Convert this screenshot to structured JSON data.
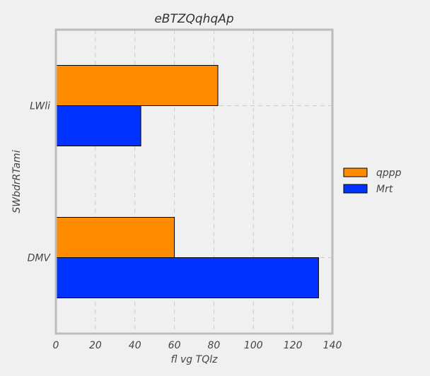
{
  "chart_data": {
    "type": "bar",
    "orientation": "horizontal",
    "title": "eBTZQqhqAp",
    "xlabel": "fl  vg TQlz",
    "ylabel": "SWbdrRTami",
    "categories": [
      "LWli",
      "DMV"
    ],
    "series": [
      {
        "name": "qppp",
        "values": [
          82,
          60
        ],
        "color": "#ff8c00"
      },
      {
        "name": "Mrt",
        "values": [
          43,
          133
        ],
        "color": "#0033ff"
      }
    ],
    "xlim": [
      0,
      140
    ],
    "xticks": [
      "0",
      "20",
      "40",
      "60",
      "80",
      "100",
      "120",
      "140"
    ],
    "grid": true,
    "legend_position": "right"
  }
}
